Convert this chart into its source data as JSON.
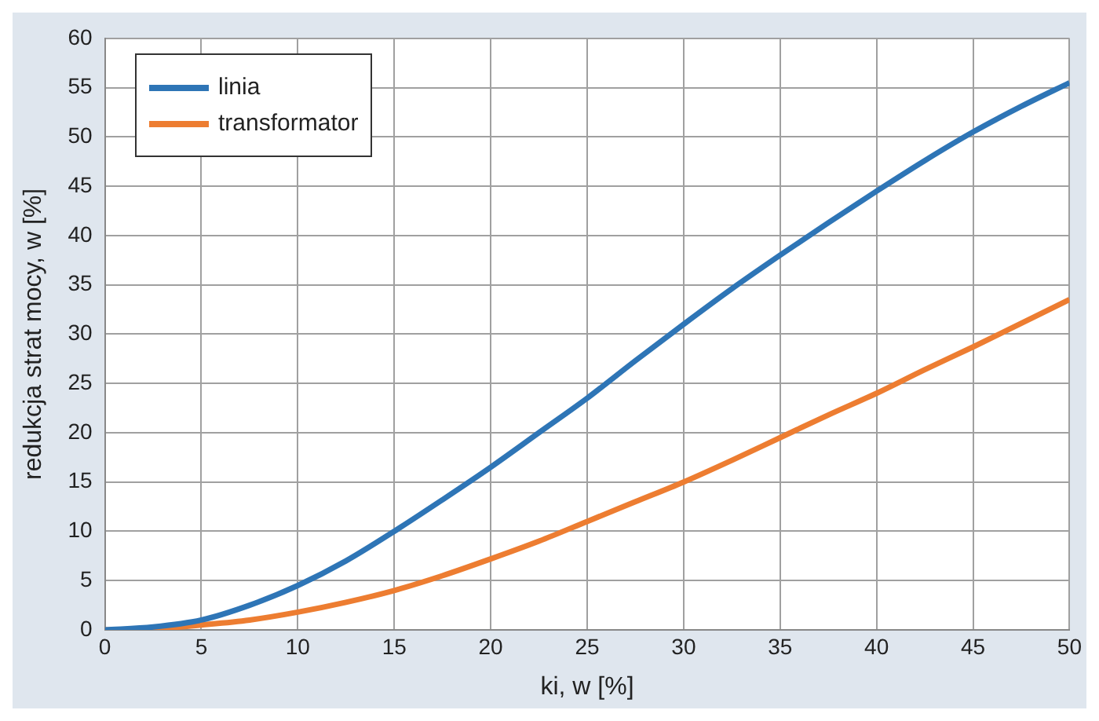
{
  "chart_data": {
    "type": "line",
    "xlabel": "ki, w [%]",
    "ylabel": "redukcja strat mocy, w [%]",
    "x": [
      0,
      2.5,
      5,
      7.5,
      10,
      12.5,
      15,
      17.5,
      20,
      22.5,
      25,
      27.5,
      30,
      32.5,
      35,
      37.5,
      40,
      42.5,
      45,
      47.5,
      50
    ],
    "series": [
      {
        "name": "linia",
        "color": "#2e75b6",
        "values": [
          0,
          0.3,
          1,
          2.5,
          4.5,
          7,
          10,
          13.2,
          16.5,
          20,
          23.5,
          27.3,
          31,
          34.6,
          38,
          41.3,
          44.5,
          47.6,
          50.5,
          53.1,
          55.5
        ]
      },
      {
        "name": "transformator",
        "color": "#ed7d31",
        "values": [
          0,
          0.1,
          0.5,
          1,
          1.8,
          2.8,
          4,
          5.5,
          7.2,
          9,
          11,
          13,
          15,
          17.2,
          19.5,
          21.8,
          24,
          26.4,
          28.7,
          31.1,
          33.5
        ]
      }
    ],
    "xlim": [
      0,
      50
    ],
    "xticks": [
      0,
      5,
      10,
      15,
      20,
      25,
      30,
      35,
      40,
      45,
      50
    ],
    "ylim": [
      0,
      60
    ],
    "yticks": [
      0,
      5,
      10,
      15,
      20,
      25,
      30,
      35,
      40,
      45,
      50,
      55,
      60
    ],
    "grid": true,
    "legend": "top left",
    "marker": "none",
    "line_style": "solid"
  }
}
